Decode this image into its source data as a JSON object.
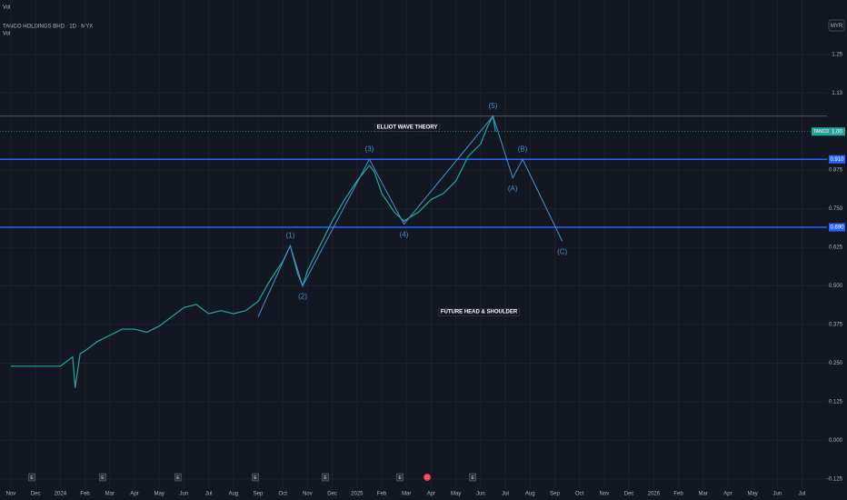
{
  "chart_data": {
    "type": "line",
    "title": "TANCO HOLDINGS BHD · 1D · MYX",
    "top_label": "Vol",
    "indicator": "Vol",
    "currency": "MYR",
    "ticker": "TANCO",
    "color": "#26a69a",
    "x": [
      0,
      1,
      2,
      2.5,
      2.6,
      2.8,
      3,
      3.5,
      4,
      4.5,
      5,
      5.5,
      6,
      6.5,
      7,
      7.5,
      8,
      8.5,
      9,
      9.5,
      10,
      10.5,
      11,
      11.3,
      11.6,
      11.8,
      12,
      12.5,
      13,
      13.5,
      14,
      14.5,
      14.7,
      15,
      15.5,
      15.9,
      16.5,
      17,
      17.5,
      18,
      18.5,
      19,
      19.3,
      19.5,
      19.6
    ],
    "values": [
      0.24,
      0.24,
      0.24,
      0.27,
      0.17,
      0.28,
      0.29,
      0.32,
      0.34,
      0.36,
      0.36,
      0.35,
      0.37,
      0.4,
      0.43,
      0.44,
      0.41,
      0.42,
      0.41,
      0.42,
      0.45,
      0.52,
      0.58,
      0.63,
      0.54,
      0.5,
      0.55,
      0.63,
      0.71,
      0.78,
      0.84,
      0.89,
      0.87,
      0.8,
      0.74,
      0.71,
      0.74,
      0.78,
      0.8,
      0.84,
      0.92,
      0.96,
      1.02,
      1.05,
      1.0
    ],
    "xlim": [
      -0.44,
      33.01
    ],
    "ylim": [
      -0.155,
      1.426
    ],
    "xticks": [
      {
        "value": 0,
        "label": "Nov"
      },
      {
        "value": 1,
        "label": "Dec"
      },
      {
        "value": 2,
        "label": "2024"
      },
      {
        "value": 3,
        "label": "Feb"
      },
      {
        "value": 4,
        "label": "Mar"
      },
      {
        "value": 5,
        "label": "Apr"
      },
      {
        "value": 6,
        "label": "May"
      },
      {
        "value": 7,
        "label": "Jun"
      },
      {
        "value": 8,
        "label": "Jul"
      },
      {
        "value": 9,
        "label": "Aug"
      },
      {
        "value": 10,
        "label": "Sep"
      },
      {
        "value": 11,
        "label": "Oct"
      },
      {
        "value": 12,
        "label": "Nov"
      },
      {
        "value": 13,
        "label": "Dec"
      },
      {
        "value": 14,
        "label": "2025"
      },
      {
        "value": 15,
        "label": "Feb"
      },
      {
        "value": 16,
        "label": "Mar"
      },
      {
        "value": 17,
        "label": "Apr"
      },
      {
        "value": 18,
        "label": "May"
      },
      {
        "value": 19,
        "label": "Jun"
      },
      {
        "value": 20,
        "label": "Jul"
      },
      {
        "value": 21,
        "label": "Aug"
      },
      {
        "value": 22,
        "label": "Sep"
      },
      {
        "value": 23,
        "label": "Oct"
      },
      {
        "value": 24,
        "label": "Nov"
      },
      {
        "value": 25,
        "label": "Dec"
      },
      {
        "value": 26,
        "label": "2026"
      },
      {
        "value": 27,
        "label": "Feb"
      },
      {
        "value": 28,
        "label": "Mar"
      },
      {
        "value": 29,
        "label": "Apr"
      },
      {
        "value": 30,
        "label": "May"
      },
      {
        "value": 31,
        "label": "Jun"
      },
      {
        "value": 32,
        "label": "Jul"
      }
    ],
    "yticks": [
      {
        "value": 1.25,
        "label": "1.25"
      },
      {
        "value": 1.125,
        "label": "1.13"
      },
      {
        "value": 0.875,
        "label": "0.875"
      },
      {
        "value": 0.75,
        "label": "0.750"
      },
      {
        "value": 0.625,
        "label": "0.625"
      },
      {
        "value": 0.5,
        "label": "0.500"
      },
      {
        "value": 0.375,
        "label": "0.375"
      },
      {
        "value": 0.25,
        "label": "0.250"
      },
      {
        "value": 0.125,
        "label": "0.125"
      },
      {
        "value": 0,
        "label": "0.000"
      },
      {
        "value": -0.125,
        "label": "-0.125"
      }
    ],
    "grid": true,
    "levels": [
      {
        "value": 0.91,
        "label": "0.910"
      },
      {
        "value": 0.69,
        "label": "0.690"
      }
    ],
    "level_color": "#2962ff",
    "last_price": {
      "value": 1.0,
      "label": "1.00"
    },
    "high": 1.05,
    "wave": {
      "color": "#4a90c8",
      "labels": [
        null,
        "(1)",
        "(2)",
        "(3)",
        "(4)",
        "(5)",
        "(A)",
        "(B)",
        "(C)"
      ],
      "x": [
        10,
        11.3,
        11.8,
        14.5,
        15.9,
        19.5,
        20.3,
        20.7,
        22.3
      ],
      "values": [
        0.4,
        0.63,
        0.5,
        0.91,
        0.7,
        1.05,
        0.85,
        0.91,
        0.645
      ]
    },
    "annotations": [
      "ELLIOT WAVE THEORY",
      "FUTURE HEAD & SHOULDER"
    ],
    "events": {
      "labels": [
        "E",
        "E",
        "E",
        "E",
        "E",
        "E",
        "D",
        "E"
      ],
      "x": [
        0.85,
        3.71,
        6.76,
        9.89,
        12.72,
        15.74,
        16.84,
        18.68
      ]
    }
  }
}
